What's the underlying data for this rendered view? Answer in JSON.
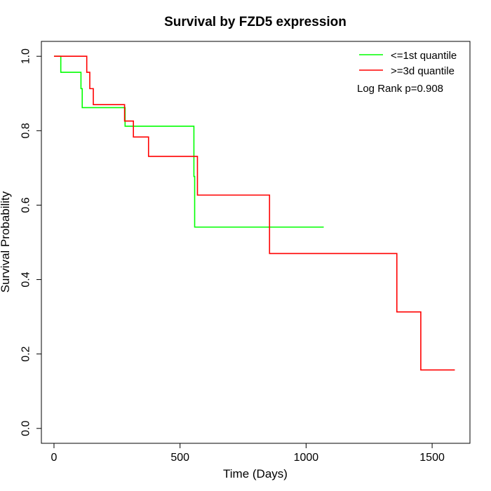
{
  "chart_data": {
    "type": "line",
    "subtype": "kaplan-meier step",
    "title": "Survival by FZD5 expression",
    "xlabel": "Time (Days)",
    "ylabel": "Survival Probability",
    "xlim": [
      -50,
      1650
    ],
    "ylim": [
      -0.04,
      1.04
    ],
    "xticks": [
      0,
      500,
      1000,
      1500
    ],
    "yticks": [
      0.0,
      0.2,
      0.4,
      0.6,
      0.8,
      1.0
    ],
    "xtick_labels": [
      "0",
      "500",
      "1000",
      "1500"
    ],
    "ytick_labels": [
      "0.0",
      "0.2",
      "0.4",
      "0.6",
      "0.8",
      "1.0"
    ],
    "grid": false,
    "legend_position": "top-right",
    "annotation": "Log Rank p=0.908",
    "series": [
      {
        "name": "<=1st quantile",
        "color": "#00ff00",
        "x": [
          0,
          27,
          107,
          112,
          280,
          282,
          551,
          555,
          558,
          1070
        ],
        "y": [
          1.0,
          0.957,
          0.913,
          0.862,
          0.862,
          0.812,
          0.812,
          0.677,
          0.541,
          0.541
        ]
      },
      {
        "name": ">=3d quantile",
        "color": "#ff0000",
        "x": [
          0,
          130,
          142,
          156,
          280,
          315,
          375,
          569,
          855,
          1360,
          1455,
          1590
        ],
        "y": [
          1.0,
          0.957,
          0.913,
          0.87,
          0.826,
          0.783,
          0.731,
          0.627,
          0.47,
          0.313,
          0.157,
          0.157
        ]
      }
    ]
  }
}
